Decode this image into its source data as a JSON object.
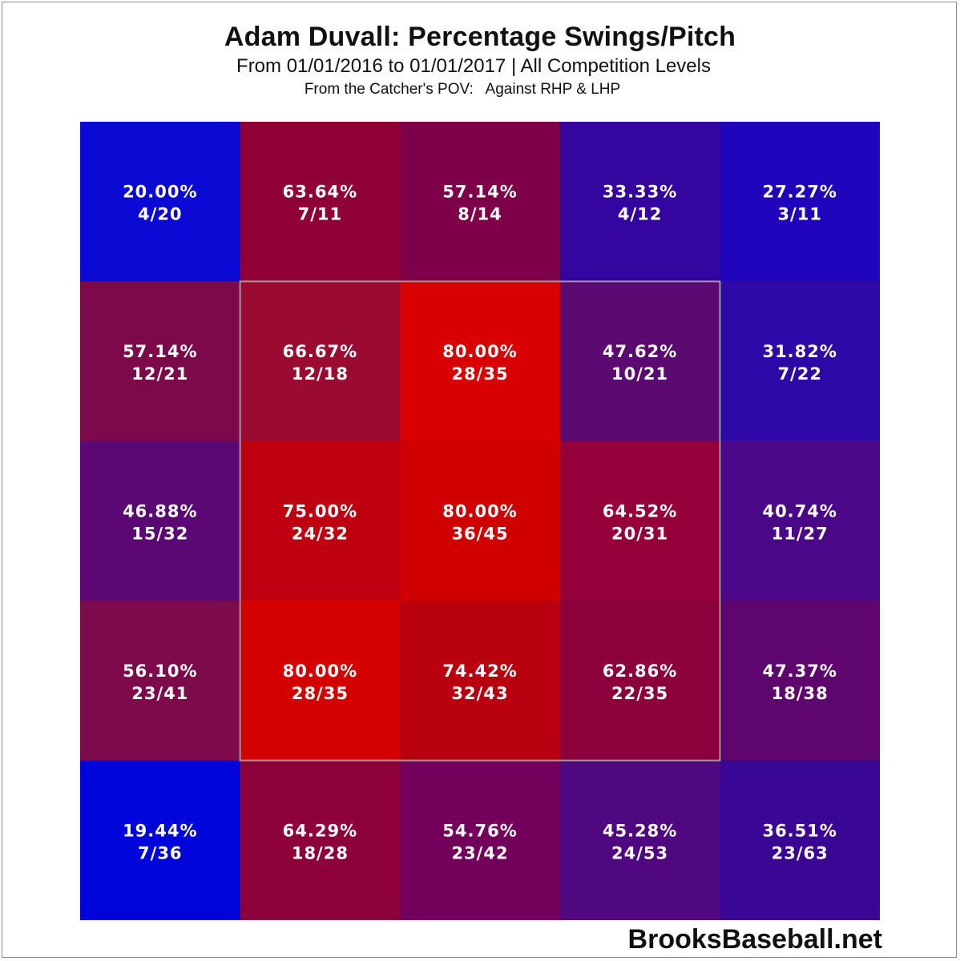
{
  "chart_data": {
    "type": "heatmap",
    "title": "Adam Duvall: Percentage Swings/Pitch",
    "subtitle": "From 01/01/2016 to 01/01/2017 | All Competition Levels",
    "pov_label": "From the Catcher's POV:",
    "pitcher_label": "Against RHP & LHP",
    "rows": 5,
    "cols": 5,
    "strike_zone": {
      "row_start": 1,
      "row_end": 3,
      "col_start": 1,
      "col_end": 3
    },
    "cells": [
      [
        {
          "pct": "20.00%",
          "frac": "4/20",
          "value": 20.0,
          "color": "#0a0ad4"
        },
        {
          "pct": "63.64%",
          "frac": "7/11",
          "value": 63.64,
          "color": "#8f0035"
        },
        {
          "pct": "57.14%",
          "frac": "8/14",
          "value": 57.14,
          "color": "#7e0048"
        },
        {
          "pct": "33.33%",
          "frac": "4/12",
          "value": 33.33,
          "color": "#35059f"
        },
        {
          "pct": "27.27%",
          "frac": "3/11",
          "value": 27.27,
          "color": "#1f06bd"
        }
      ],
      [
        {
          "pct": "57.14%",
          "frac": "12/21",
          "value": 57.14,
          "color": "#7c0a4a"
        },
        {
          "pct": "66.67%",
          "frac": "12/18",
          "value": 66.67,
          "color": "#9b0a30"
        },
        {
          "pct": "80.00%",
          "frac": "28/35",
          "value": 80.0,
          "color": "#d80000"
        },
        {
          "pct": "47.62%",
          "frac": "10/21",
          "value": 47.62,
          "color": "#5a0a70"
        },
        {
          "pct": "31.82%",
          "frac": "7/22",
          "value": 31.82,
          "color": "#2f08a8"
        }
      ],
      [
        {
          "pct": "46.88%",
          "frac": "15/32",
          "value": 46.88,
          "color": "#5c0874"
        },
        {
          "pct": "75.00%",
          "frac": "24/32",
          "value": 75.0,
          "color": "#be0010"
        },
        {
          "pct": "80.00%",
          "frac": "36/45",
          "value": 80.0,
          "color": "#d00000"
        },
        {
          "pct": "64.52%",
          "frac": "20/31",
          "value": 64.52,
          "color": "#95003a"
        },
        {
          "pct": "40.74%",
          "frac": "11/27",
          "value": 40.74,
          "color": "#4a0889"
        }
      ],
      [
        {
          "pct": "56.10%",
          "frac": "23/41",
          "value": 56.1,
          "color": "#7d0a4b"
        },
        {
          "pct": "80.00%",
          "frac": "28/35",
          "value": 80.0,
          "color": "#d40000"
        },
        {
          "pct": "74.42%",
          "frac": "32/43",
          "value": 74.42,
          "color": "#b8000e"
        },
        {
          "pct": "62.86%",
          "frac": "22/35",
          "value": 62.86,
          "color": "#8c003c"
        },
        {
          "pct": "47.37%",
          "frac": "18/38",
          "value": 47.37,
          "color": "#5e066e"
        }
      ],
      [
        {
          "pct": "19.44%",
          "frac": "7/36",
          "value": 19.44,
          "color": "#0005d9"
        },
        {
          "pct": "64.29%",
          "frac": "18/28",
          "value": 64.29,
          "color": "#8d003a"
        },
        {
          "pct": "54.76%",
          "frac": "23/42",
          "value": 54.76,
          "color": "#73005a"
        },
        {
          "pct": "45.28%",
          "frac": "24/53",
          "value": 45.28,
          "color": "#4f0880"
        },
        {
          "pct": "36.51%",
          "frac": "23/63",
          "value": 36.51,
          "color": "#3a0795"
        }
      ]
    ]
  },
  "watermark": "BrooksBaseball.net"
}
